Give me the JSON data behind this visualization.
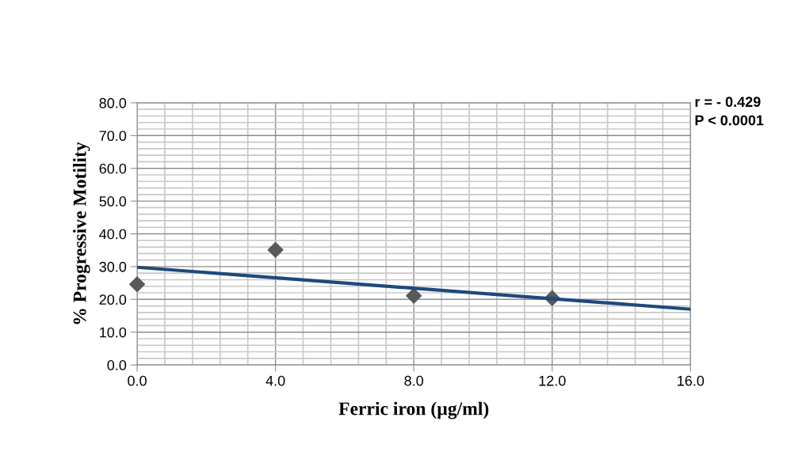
{
  "chart_data": {
    "type": "scatter",
    "xlabel": "Ferric iron (µg/ml)",
    "ylabel": "% Progressive Motility",
    "series": [
      {
        "color": "#595959",
        "marker": "diamond",
        "x": [
          0,
          4,
          8,
          12
        ],
        "values": [
          24.6,
          35.1,
          21.1,
          20.4
        ]
      },
      {
        "type": "line",
        "color": "#1f497d",
        "marker": "none",
        "line_style": "solid",
        "x": [
          0,
          16
        ],
        "values": [
          29.8,
          17.0
        ]
      }
    ],
    "xlim": [
      0,
      16
    ],
    "ylim": [
      0,
      80
    ],
    "xticks": [
      {
        "value": 0,
        "label": "0.0"
      },
      {
        "value": 4,
        "label": "4.0"
      },
      {
        "value": 8,
        "label": "8.0"
      },
      {
        "value": 12,
        "label": "12.0"
      },
      {
        "value": 16,
        "label": "16.0"
      }
    ],
    "yticks": [
      {
        "value": 0,
        "label": "0.0"
      },
      {
        "value": 10,
        "label": "10.0"
      },
      {
        "value": 20,
        "label": "20.0"
      },
      {
        "value": 30,
        "label": "30.0"
      },
      {
        "value": 40,
        "label": "40.0"
      },
      {
        "value": 50,
        "label": "50.0"
      },
      {
        "value": 60,
        "label": "60.0"
      },
      {
        "value": 70,
        "label": "70.0"
      },
      {
        "value": 80,
        "label": "80.0"
      }
    ],
    "grid": true,
    "annotations": [
      "r = - 0.429\nP < 0.0001"
    ]
  }
}
